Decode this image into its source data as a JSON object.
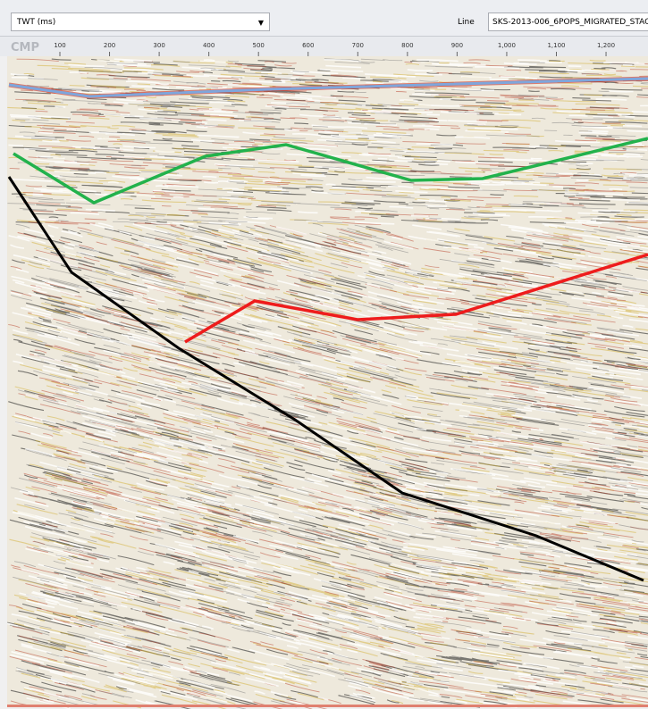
{
  "toolbar": {
    "domain_select": "TWT (ms)",
    "line_label": "Line",
    "line_value": "SKS-2013-006_6POPS_MIGRATED_STAC"
  },
  "axis": {
    "label": "CMP",
    "ticks": [
      100,
      200,
      300,
      400,
      500,
      600,
      700,
      800,
      900,
      {
        "value": 1000,
        "label": "1,000"
      },
      {
        "value": 1100,
        "label": "1,100"
      },
      {
        "value": 1200,
        "label": "1,200"
      }
    ]
  }
}
